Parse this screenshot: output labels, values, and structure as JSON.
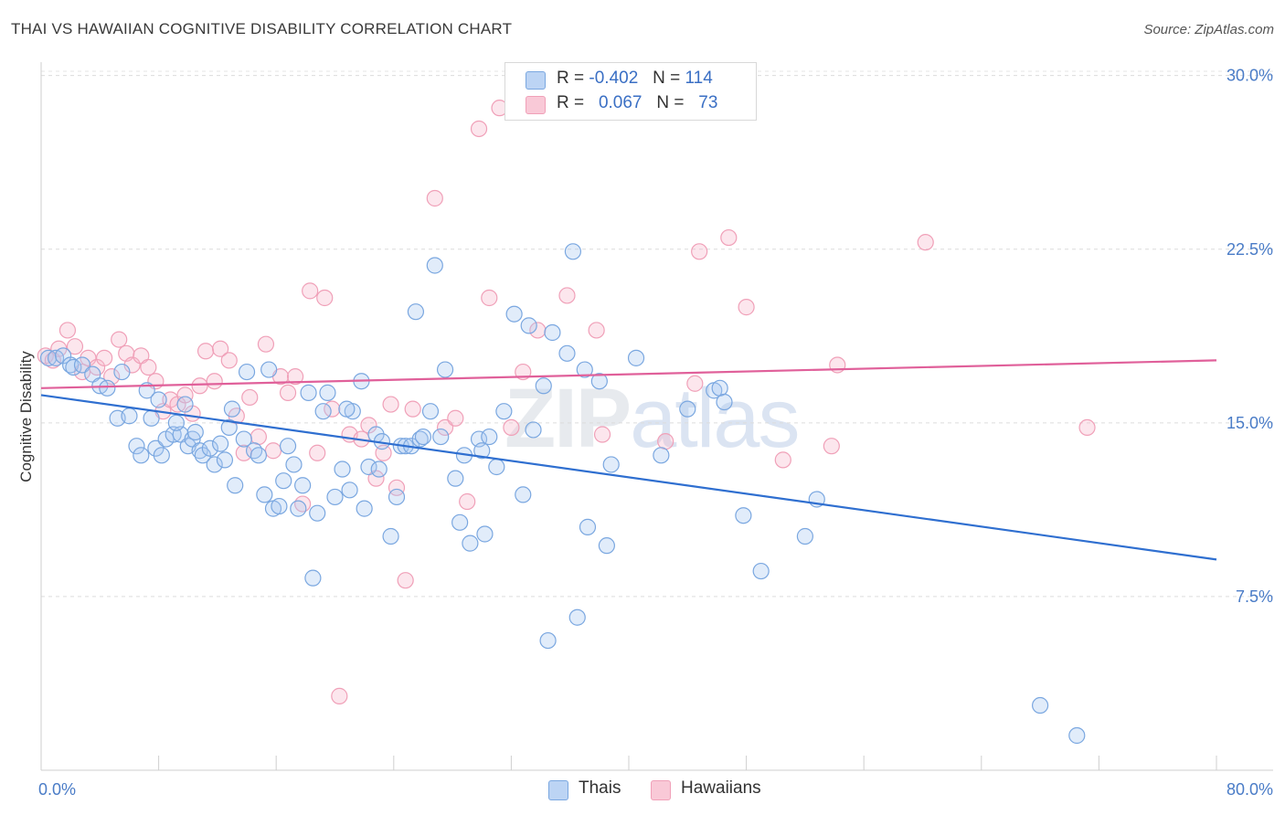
{
  "title": "THAI VS HAWAIIAN COGNITIVE DISABILITY CORRELATION CHART",
  "source": "Source: ZipAtlas.com",
  "watermark": {
    "zip": "ZIP",
    "atlas": "atlas"
  },
  "legend": {
    "rows": [
      {
        "r_label": "R =",
        "r_value": "-0.402",
        "n_label": "N =",
        "n_value": "114",
        "color": "#a9c8f0"
      },
      {
        "r_label": "R =",
        "r_value": "0.067",
        "n_label": "N =",
        "n_value": "73",
        "color": "#f6b8cb"
      }
    ]
  },
  "bottom_legend": [
    {
      "label": "Thais",
      "color": "#a9c8f0"
    },
    {
      "label": "Hawaiians",
      "color": "#f6b8cb"
    }
  ],
  "chart_data": {
    "type": "scatter",
    "title": "THAI VS HAWAIIAN COGNITIVE DISABILITY CORRELATION CHART",
    "xlabel": "",
    "ylabel": "Cognitive Disability",
    "xlim": [
      0,
      80
    ],
    "ylim": [
      0,
      30.5
    ],
    "x_tick_labels": [
      {
        "value": 0,
        "label": "0.0%"
      },
      {
        "value": 80,
        "label": "80.0%"
      }
    ],
    "y_tick_labels": [
      {
        "value": 7.5,
        "label": "7.5%"
      },
      {
        "value": 15.0,
        "label": "15.0%"
      },
      {
        "value": 22.5,
        "label": "22.5%"
      },
      {
        "value": 30.0,
        "label": "30.0%"
      }
    ],
    "grid": "horizontal dashed",
    "series": [
      {
        "name": "Thais",
        "color": "#7aa7e0",
        "line_color": "#2f6fd0",
        "trend": {
          "x": [
            0,
            80
          ],
          "y": [
            16.2,
            9.1
          ]
        },
        "points": [
          [
            0.5,
            17.8
          ],
          [
            1.0,
            17.8
          ],
          [
            1.5,
            17.9
          ],
          [
            2.0,
            17.5
          ],
          [
            2.2,
            17.4
          ],
          [
            2.8,
            17.5
          ],
          [
            3.5,
            17.1
          ],
          [
            4.0,
            16.6
          ],
          [
            4.5,
            16.5
          ],
          [
            5.5,
            17.2
          ],
          [
            5.2,
            15.2
          ],
          [
            6.0,
            15.3
          ],
          [
            6.5,
            14.0
          ],
          [
            6.8,
            13.6
          ],
          [
            7.2,
            16.4
          ],
          [
            7.5,
            15.2
          ],
          [
            7.8,
            13.9
          ],
          [
            8.0,
            16.0
          ],
          [
            8.2,
            13.6
          ],
          [
            8.5,
            14.3
          ],
          [
            9.0,
            14.5
          ],
          [
            9.5,
            14.5
          ],
          [
            9.8,
            15.8
          ],
          [
            10.0,
            14.0
          ],
          [
            10.3,
            14.3
          ],
          [
            10.5,
            14.6
          ],
          [
            10.8,
            13.8
          ],
          [
            11.0,
            13.6
          ],
          [
            11.5,
            13.9
          ],
          [
            11.8,
            13.2
          ],
          [
            12.2,
            14.1
          ],
          [
            12.5,
            13.4
          ],
          [
            13.0,
            15.6
          ],
          [
            13.2,
            12.3
          ],
          [
            13.8,
            14.3
          ],
          [
            14.0,
            17.2
          ],
          [
            14.5,
            13.8
          ],
          [
            14.8,
            13.6
          ],
          [
            15.2,
            11.9
          ],
          [
            15.5,
            17.3
          ],
          [
            15.8,
            11.3
          ],
          [
            16.2,
            11.4
          ],
          [
            16.5,
            12.5
          ],
          [
            16.8,
            14.0
          ],
          [
            17.2,
            13.2
          ],
          [
            17.5,
            11.3
          ],
          [
            17.8,
            12.3
          ],
          [
            18.2,
            16.3
          ],
          [
            18.5,
            8.3
          ],
          [
            18.8,
            11.1
          ],
          [
            19.2,
            15.5
          ],
          [
            19.5,
            16.3
          ],
          [
            20.0,
            11.8
          ],
          [
            20.5,
            13.0
          ],
          [
            21.0,
            12.1
          ],
          [
            21.2,
            15.5
          ],
          [
            21.8,
            16.8
          ],
          [
            22.0,
            11.3
          ],
          [
            22.3,
            13.1
          ],
          [
            22.8,
            14.5
          ],
          [
            23.0,
            13.0
          ],
          [
            23.2,
            14.2
          ],
          [
            23.8,
            10.1
          ],
          [
            24.2,
            11.8
          ],
          [
            24.5,
            14.0
          ],
          [
            24.8,
            14.0
          ],
          [
            25.2,
            14.0
          ],
          [
            25.5,
            19.8
          ],
          [
            25.8,
            14.3
          ],
          [
            26.0,
            14.4
          ],
          [
            26.5,
            15.5
          ],
          [
            26.8,
            21.8
          ],
          [
            27.2,
            14.4
          ],
          [
            27.5,
            17.3
          ],
          [
            28.2,
            12.6
          ],
          [
            28.5,
            10.7
          ],
          [
            28.8,
            13.6
          ],
          [
            29.2,
            9.8
          ],
          [
            29.8,
            14.3
          ],
          [
            30.2,
            10.2
          ],
          [
            30.5,
            14.4
          ],
          [
            31.0,
            13.1
          ],
          [
            31.5,
            15.5
          ],
          [
            32.2,
            19.7
          ],
          [
            32.8,
            11.9
          ],
          [
            33.2,
            19.2
          ],
          [
            33.5,
            14.7
          ],
          [
            34.2,
            16.6
          ],
          [
            34.8,
            18.9
          ],
          [
            35.8,
            18.0
          ],
          [
            36.2,
            22.4
          ],
          [
            36.5,
            6.6
          ],
          [
            37.0,
            17.3
          ],
          [
            37.2,
            10.5
          ],
          [
            38.0,
            16.8
          ],
          [
            38.5,
            9.7
          ],
          [
            38.8,
            13.2
          ],
          [
            40.5,
            17.8
          ],
          [
            42.2,
            13.6
          ],
          [
            44.0,
            15.6
          ],
          [
            45.8,
            16.4
          ],
          [
            46.2,
            16.5
          ],
          [
            46.5,
            15.9
          ],
          [
            47.8,
            11.0
          ],
          [
            49.0,
            8.6
          ],
          [
            52.0,
            10.1
          ],
          [
            52.8,
            11.7
          ],
          [
            34.5,
            5.6
          ],
          [
            68.0,
            2.8
          ],
          [
            70.5,
            1.5
          ],
          [
            30.0,
            13.8
          ],
          [
            20.8,
            15.6
          ],
          [
            12.8,
            14.8
          ],
          [
            9.2,
            15.0
          ]
        ]
      },
      {
        "name": "Hawaiians",
        "color": "#f0a0b8",
        "line_color": "#e0609a",
        "trend": {
          "x": [
            0,
            80
          ],
          "y": [
            16.5,
            17.7
          ]
        },
        "points": [
          [
            0.3,
            17.9
          ],
          [
            0.8,
            17.7
          ],
          [
            1.2,
            18.2
          ],
          [
            1.8,
            19.0
          ],
          [
            2.3,
            18.3
          ],
          [
            2.8,
            17.2
          ],
          [
            3.2,
            17.8
          ],
          [
            3.8,
            17.4
          ],
          [
            4.3,
            17.8
          ],
          [
            4.8,
            17.0
          ],
          [
            5.3,
            18.6
          ],
          [
            5.8,
            18.0
          ],
          [
            6.2,
            17.5
          ],
          [
            6.8,
            17.9
          ],
          [
            7.3,
            17.4
          ],
          [
            7.8,
            16.8
          ],
          [
            8.3,
            15.5
          ],
          [
            8.8,
            16.0
          ],
          [
            9.3,
            15.8
          ],
          [
            9.8,
            16.2
          ],
          [
            10.3,
            15.4
          ],
          [
            10.8,
            16.6
          ],
          [
            11.2,
            18.1
          ],
          [
            11.8,
            16.8
          ],
          [
            12.2,
            18.2
          ],
          [
            12.8,
            17.7
          ],
          [
            13.3,
            15.3
          ],
          [
            13.8,
            13.7
          ],
          [
            14.2,
            16.1
          ],
          [
            14.8,
            14.4
          ],
          [
            15.3,
            18.4
          ],
          [
            15.8,
            13.8
          ],
          [
            16.3,
            17.0
          ],
          [
            16.8,
            16.3
          ],
          [
            17.3,
            17.0
          ],
          [
            17.8,
            11.5
          ],
          [
            18.3,
            20.7
          ],
          [
            18.8,
            13.7
          ],
          [
            19.3,
            20.4
          ],
          [
            19.8,
            15.6
          ],
          [
            20.3,
            3.2
          ],
          [
            21.0,
            14.5
          ],
          [
            21.8,
            14.3
          ],
          [
            22.3,
            14.9
          ],
          [
            22.8,
            12.6
          ],
          [
            23.3,
            13.7
          ],
          [
            23.8,
            15.8
          ],
          [
            24.2,
            12.2
          ],
          [
            24.8,
            8.2
          ],
          [
            25.3,
            15.6
          ],
          [
            26.8,
            24.7
          ],
          [
            27.5,
            14.8
          ],
          [
            28.2,
            15.2
          ],
          [
            29.0,
            11.6
          ],
          [
            29.8,
            27.7
          ],
          [
            30.5,
            20.4
          ],
          [
            31.2,
            28.6
          ],
          [
            32.0,
            14.8
          ],
          [
            32.8,
            17.2
          ],
          [
            33.8,
            19.0
          ],
          [
            35.8,
            20.5
          ],
          [
            37.8,
            19.0
          ],
          [
            38.2,
            14.5
          ],
          [
            42.5,
            14.2
          ],
          [
            44.8,
            22.4
          ],
          [
            46.8,
            23.0
          ],
          [
            48.0,
            20.0
          ],
          [
            50.5,
            13.4
          ],
          [
            53.8,
            14.0
          ],
          [
            54.2,
            17.5
          ],
          [
            60.2,
            22.8
          ],
          [
            71.2,
            14.8
          ],
          [
            44.5,
            16.7
          ]
        ]
      }
    ]
  }
}
